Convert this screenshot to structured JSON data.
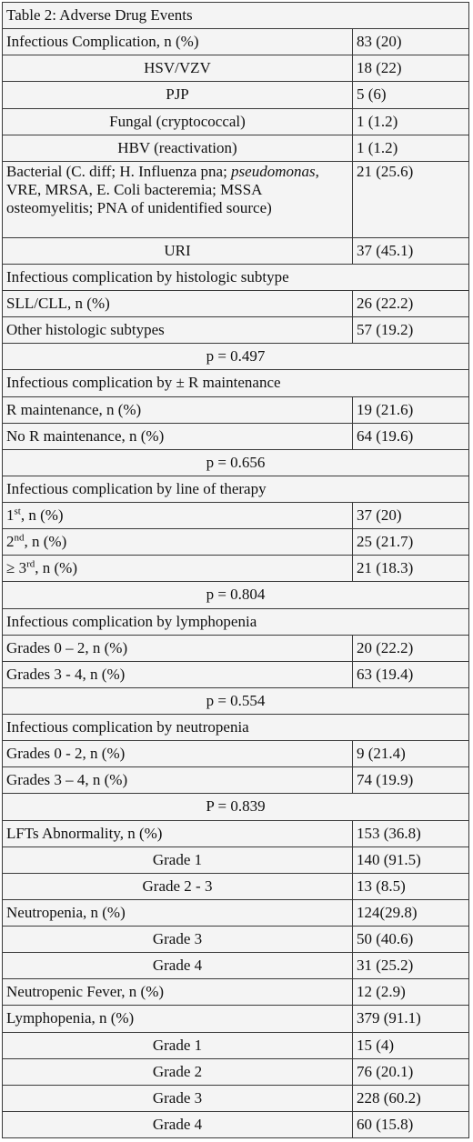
{
  "table": {
    "title": "Table 2: Adverse Drug Events",
    "rows": [
      {
        "label": "Infectious Complication, n (%)",
        "value": "83 (20)"
      },
      {
        "label": "HSV/VZV",
        "value": "18 (22)",
        "align": "center"
      },
      {
        "label": "PJP",
        "value": "5 (6)",
        "align": "center"
      },
      {
        "label": "Fungal (cryptococcal)",
        "value": "1 (1.2)",
        "align": "center"
      },
      {
        "label": "HBV (reactivation)",
        "value": "1 (1.2)",
        "align": "center"
      },
      {
        "label": [
          {
            "text": "Bacterial (C. diff; H. Influenza pna; "
          },
          {
            "text": "pseudomonas",
            "italic": true
          },
          {
            "text": ", VRE, MRSA, E. Coli bacteremia; MSSA osteomyelitis; PNA of unidentified source)"
          }
        ],
        "value": "21 (25.6)",
        "tall": true
      },
      {
        "label": "URI",
        "value": "37 (45.1)",
        "align": "center"
      },
      {
        "label": "Infectious complication by histologic subtype",
        "span": true
      },
      {
        "label": "SLL/CLL, n (%)",
        "value": "26 (22.2)"
      },
      {
        "label": "Other histologic subtypes",
        "value": "57 (19.2)"
      },
      {
        "label": "p = 0.497",
        "span": true,
        "align": "center"
      },
      {
        "label": "Infectious complication by ± R maintenance",
        "span": true
      },
      {
        "label": "R maintenance, n (%)",
        "value": "19 (21.6)"
      },
      {
        "label": "No R maintenance, n (%)",
        "value": "64 (19.6)"
      },
      {
        "label": "p = 0.656",
        "span": true,
        "align": "center"
      },
      {
        "label": "Infectious complication by line of therapy",
        "span": true
      },
      {
        "label": [
          {
            "text": "1"
          },
          {
            "text": "st",
            "sup": true
          },
          {
            "text": ", n (%)"
          }
        ],
        "value": "37 (20)"
      },
      {
        "label": [
          {
            "text": "2"
          },
          {
            "text": "nd",
            "sup": true
          },
          {
            "text": ", n (%)"
          }
        ],
        "value": "25 (21.7)"
      },
      {
        "label": [
          {
            "text": "≥ 3"
          },
          {
            "text": "rd",
            "sup": true
          },
          {
            "text": ", n (%)"
          }
        ],
        "value": "21 (18.3)"
      },
      {
        "label": "p = 0.804",
        "span": true,
        "align": "center"
      },
      {
        "label": "Infectious complication by lymphopenia",
        "span": true
      },
      {
        "label": "Grades 0 – 2, n (%)",
        "value": "20 (22.2)"
      },
      {
        "label": "Grades 3 - 4, n (%)",
        "value": "63 (19.4)"
      },
      {
        "label": "p = 0.554",
        "span": true,
        "align": "center"
      },
      {
        "label": "Infectious complication by neutropenia",
        "span": true
      },
      {
        "label": "Grades 0 - 2, n (%)",
        "value": "9 (21.4)"
      },
      {
        "label": "Grades 3 – 4, n (%)",
        "value": "74 (19.9)"
      },
      {
        "label": "P = 0.839",
        "span": true,
        "align": "center"
      },
      {
        "label": "LFTs Abnormality, n (%)",
        "value": "153 (36.8)"
      },
      {
        "label": "Grade 1",
        "value": "140 (91.5)",
        "align": "center"
      },
      {
        "label": "Grade 2 - 3",
        "value": "13 (8.5)",
        "align": "center"
      },
      {
        "label": "Neutropenia, n (%)",
        "value": "124(29.8)"
      },
      {
        "label": "Grade 3",
        "value": "50 (40.6)",
        "align": "center"
      },
      {
        "label": "Grade 4",
        "value": "31 (25.2)",
        "align": "center"
      },
      {
        "label": "Neutropenic Fever, n (%)",
        "value": "12 (2.9)"
      },
      {
        "label": "Lymphopenia, n (%)",
        "value": "379 (91.1)"
      },
      {
        "label": "Grade 1",
        "value": "15 (4)",
        "align": "center"
      },
      {
        "label": "Grade 2",
        "value": "76 (20.1)",
        "align": "center"
      },
      {
        "label": "Grade 3",
        "value": "228 (60.2)",
        "align": "center"
      },
      {
        "label": "Grade 4",
        "value": "60 (15.8)",
        "align": "center"
      }
    ]
  }
}
